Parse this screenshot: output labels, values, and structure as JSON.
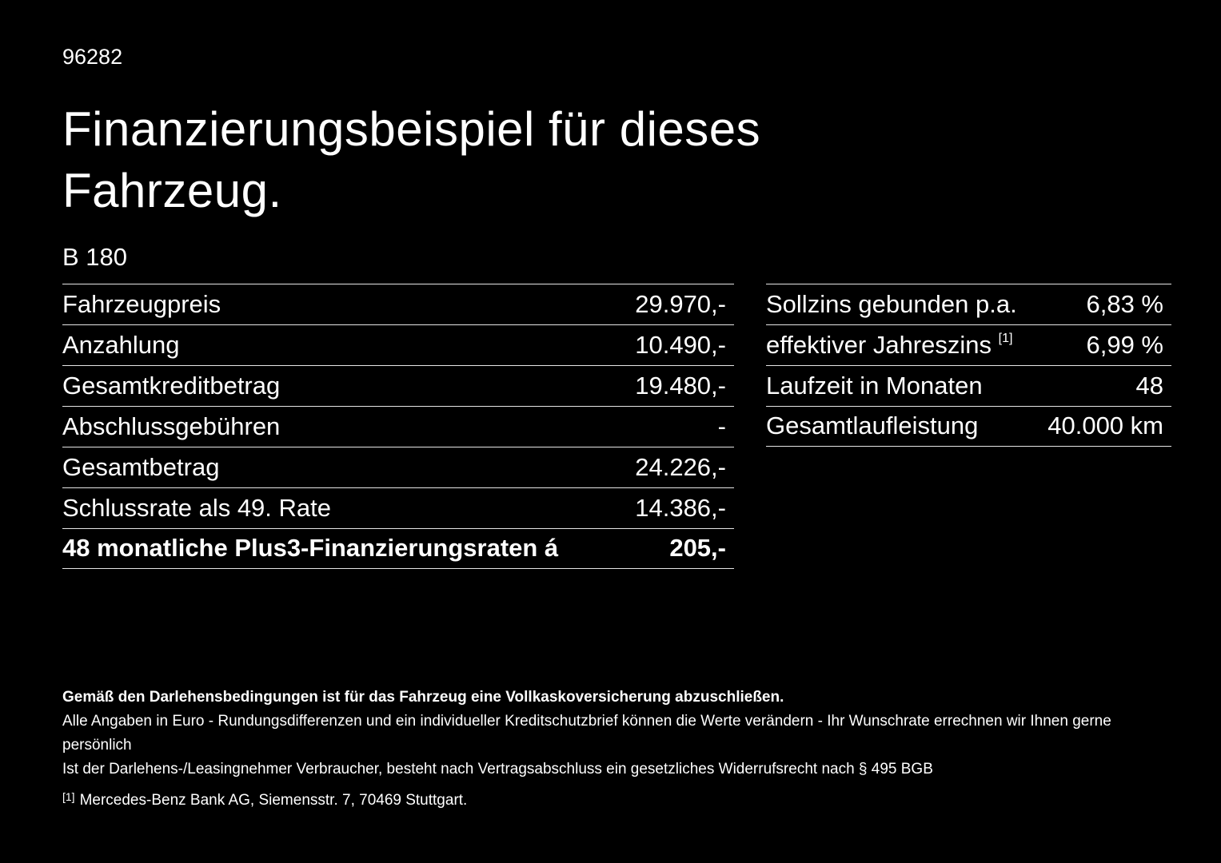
{
  "page": {
    "doc_number": "96282",
    "title_line1": "Finanzierungsbeispiel für dieses",
    "title_line2": "Fahrzeug.",
    "model": "B 180"
  },
  "left_table": {
    "rows": [
      {
        "label": "Fahrzeugpreis",
        "value": "29.970,-"
      },
      {
        "label": "Anzahlung",
        "value": "10.490,-"
      },
      {
        "label": "Gesamtkreditbetrag",
        "value": "19.480,-"
      },
      {
        "label": "Abschlussgebühren",
        "value": "-"
      },
      {
        "label": "Gesamtbetrag",
        "value": "24.226,-"
      },
      {
        "label": "Schlussrate als 49. Rate",
        "value": "14.386,-"
      },
      {
        "label": "48 monatliche Plus3-Finanzierungsraten á",
        "value": "205,-"
      }
    ]
  },
  "right_table": {
    "rows": [
      {
        "label": "Sollzins gebunden p.a.",
        "value": "6,83 %"
      },
      {
        "label": "effektiver Jahreszins",
        "sup": "[1]",
        "value": "6,99 %"
      },
      {
        "label": "Laufzeit in Monaten",
        "value": "48"
      },
      {
        "label": "Gesamtlaufleistung",
        "value": "40.000 km"
      }
    ]
  },
  "footer": {
    "note_bold": "Gemäß den Darlehensbedingungen ist für das Fahrzeug eine Vollkaskoversicherung abzuschließen.",
    "note_line1": "Alle Angaben in Euro - Rundungsdifferenzen und ein individueller Kreditschutzbrief können die Werte verändern - Ihr Wunschrate errechnen wir Ihnen gerne persönlich",
    "note_line2": "Ist der Darlehens-/Leasingnehmer Verbraucher, besteht nach Vertragsabschluss ein gesetzliches Widerrufsrecht nach § 495 BGB",
    "footnote_marker": "[1]",
    "footnote_text": "Mercedes-Benz Bank AG, Siemensstr. 7, 70469 Stuttgart."
  },
  "colors": {
    "background": "#000000",
    "text": "#ffffff",
    "divider": "#e5e5e5"
  }
}
